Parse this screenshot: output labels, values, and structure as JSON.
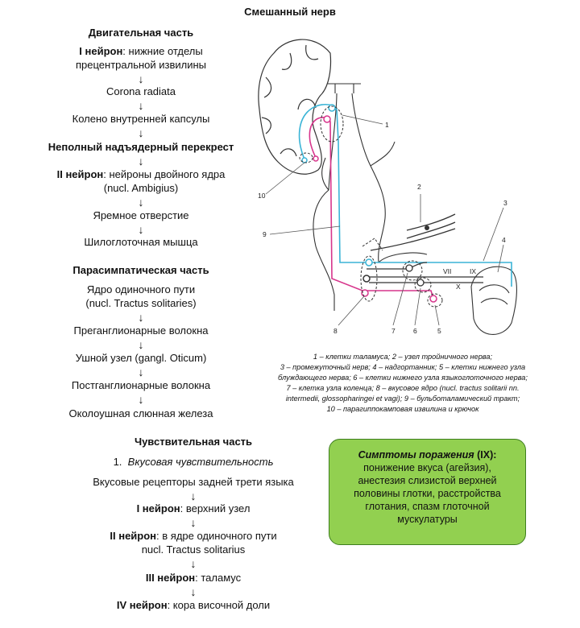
{
  "title": "Смешанный нерв",
  "motor": {
    "heading": "Двигательная часть",
    "n1_bold": "I нейрон",
    "n1_rest": ": нижние отделы",
    "n1_line2": "прецентральной извилины",
    "s1": "Corona radiata",
    "s2": "Колено внутренней капсулы",
    "s3": "Неполный надъядерный перекрест",
    "n2_bold": "II нейрон",
    "n2_rest": ": нейроны двойного ядра",
    "n2_line2": "(nucl. Ambigius)",
    "s4": "Яремное отверстие",
    "s5": "Шилоглоточная мышца"
  },
  "para": {
    "heading": "Парасимпатическая часть",
    "s1a": "Ядро одиночного пути",
    "s1b": "(nucl. Tractus solitaries)",
    "s2": "Преганглионарные волокна",
    "s3": "Ушной узел (gangl. Oticum)",
    "s4": "Постганглионарные волокна",
    "s5": "Околоушная слюнная железа"
  },
  "sensory": {
    "heading": "Чувствительная часть",
    "item_num": "1.",
    "item_text": "Вкусовая чувствительность",
    "s1": "Вкусовые рецепторы задней трети языка",
    "n1_bold": "I нейрон",
    "n1_rest": ": верхний узел",
    "n2_bold": "II нейрон",
    "n2_rest": ": в ядре одиночного пути",
    "n2_line2": "nucl. Tractus solitarius",
    "n3_bold": "III нейрон",
    "n3_rest": ": таламус",
    "n4_bold": "IV нейрон",
    "n4_rest": ": кора височной доли"
  },
  "arrow": "↓",
  "legend": {
    "l1": "1 – клетки таламуса; 2 – узел тройничного нерва;",
    "l2": "3 – промежуточный нерв; 4 – надгортанник; 5 – клетки нижнего узла",
    "l3": "блуждающего нерва; 6 – клетки нижнего узла языкоглоточного нерва;",
    "l4": "7 – клетка узла коленца; 8 – вкусовое ядро (nucl. tractus solitarii nn.",
    "l5": "intermedii, glossopharingei et vagi); 9 – бульботаламический тракт;",
    "l6": "10 – парагиппокамповая извилина и крючок"
  },
  "symptoms": {
    "title": "Симптомы поражения",
    "title_suffix": " (IX):",
    "l1": "понижение вкуса (агейзия),",
    "l2": "анестезия слизистой верхней",
    "l3": "половины глотки, расстройства",
    "l4": "глотания, спазм глоточной",
    "l5": "мускулатуры"
  },
  "figure": {
    "labels": [
      "1",
      "2",
      "3",
      "4",
      "5",
      "6",
      "7",
      "8",
      "9",
      "10",
      "VII",
      "IX",
      "X"
    ],
    "colors": {
      "cyan": "#3ab4d6",
      "magenta": "#d7358c",
      "dark": "#333333"
    }
  }
}
